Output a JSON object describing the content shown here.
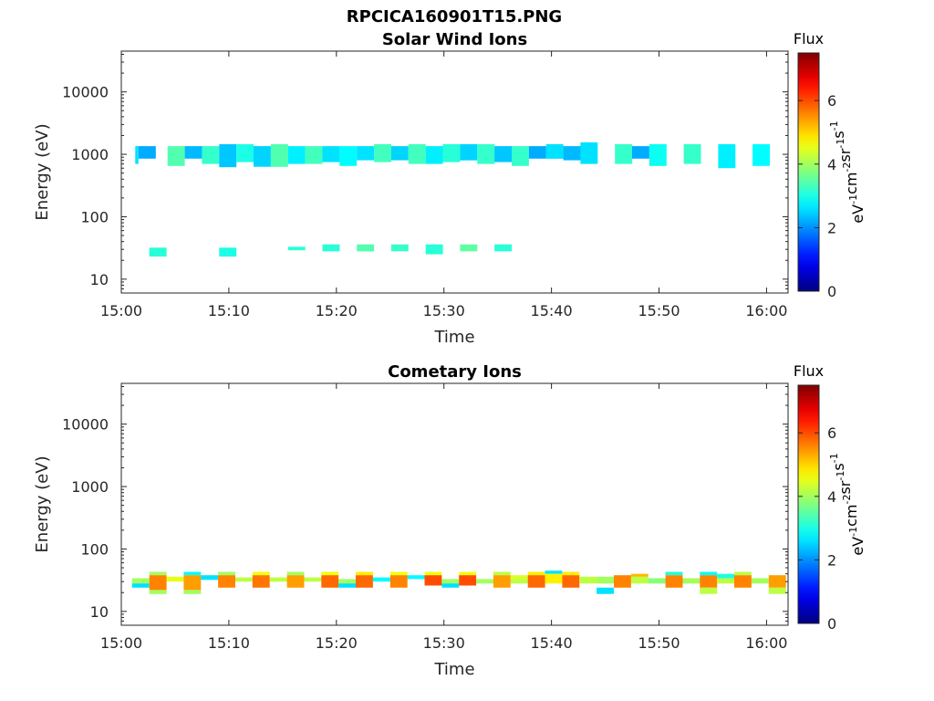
{
  "figure_title": "RPCICA160901T15.PNG",
  "chart_data": [
    {
      "type": "heatmap",
      "title": "Solar Wind Ions",
      "xlabel": "Time",
      "ylabel": "Energy (eV)",
      "x_range": [
        "15:00",
        "16:02"
      ],
      "y_range": [
        6,
        45000
      ],
      "y_scale": "log",
      "x_ticks": [
        "15:00",
        "15:10",
        "15:20",
        "15:30",
        "15:40",
        "15:50",
        "16:00"
      ],
      "y_ticks": [
        "10",
        "100",
        "1000",
        "10000"
      ],
      "colorbar": {
        "label": "Flux",
        "units": "eV-1cm-2sr-1s-1",
        "range": [
          0,
          7.5
        ],
        "ticks": [
          "0",
          "2",
          "4",
          "6"
        ],
        "colormap": "jet"
      },
      "cells": [
        [
          1.3,
          1.6,
          700,
          1350,
          2.6
        ],
        [
          1.6,
          3.2,
          850,
          1350,
          2.2
        ],
        [
          4.3,
          5.9,
          650,
          1350,
          3.4
        ],
        [
          5.9,
          7.5,
          850,
          1350,
          2.3
        ],
        [
          7.5,
          9.1,
          700,
          1350,
          3.2
        ],
        [
          9.1,
          10.7,
          620,
          1450,
          2.4
        ],
        [
          10.7,
          12.3,
          750,
          1450,
          3.0
        ],
        [
          12.3,
          13.9,
          630,
          1350,
          2.5
        ],
        [
          13.9,
          15.5,
          630,
          1450,
          3.4
        ],
        [
          15.5,
          17.1,
          700,
          1350,
          2.7
        ],
        [
          17.1,
          18.7,
          700,
          1350,
          3.3
        ],
        [
          18.7,
          20.3,
          750,
          1350,
          2.6
        ],
        [
          20.3,
          21.9,
          650,
          1350,
          2.8
        ],
        [
          21.9,
          23.5,
          800,
          1350,
          2.6
        ],
        [
          23.5,
          25.1,
          750,
          1450,
          3.3
        ],
        [
          25.1,
          26.7,
          800,
          1350,
          2.5
        ],
        [
          26.7,
          28.3,
          700,
          1450,
          3.3
        ],
        [
          28.3,
          29.9,
          700,
          1350,
          2.7
        ],
        [
          29.9,
          31.5,
          750,
          1450,
          3.1
        ],
        [
          31.5,
          33.1,
          800,
          1450,
          2.5
        ],
        [
          33.1,
          34.7,
          700,
          1450,
          3.2
        ],
        [
          34.7,
          36.3,
          750,
          1350,
          2.4
        ],
        [
          36.3,
          37.9,
          650,
          1350,
          3.2
        ],
        [
          37.9,
          39.5,
          850,
          1350,
          2.2
        ],
        [
          39.5,
          41.1,
          850,
          1450,
          2.6
        ],
        [
          41.1,
          42.7,
          800,
          1350,
          2.3
        ],
        [
          42.7,
          44.3,
          700,
          1550,
          2.6
        ],
        [
          45.9,
          47.5,
          700,
          1450,
          3.2
        ],
        [
          47.5,
          49.1,
          850,
          1350,
          2.2
        ],
        [
          49.1,
          50.7,
          650,
          1450,
          2.9
        ],
        [
          52.3,
          53.9,
          700,
          1450,
          3.2
        ],
        [
          55.5,
          57.1,
          600,
          1450,
          2.7
        ],
        [
          58.7,
          60.3,
          650,
          1450,
          2.8
        ],
        [
          2.6,
          4.2,
          23,
          32,
          3.1
        ],
        [
          9.1,
          10.7,
          23,
          32,
          3.0
        ],
        [
          15.5,
          17.1,
          29,
          33,
          3.1
        ],
        [
          18.7,
          20.3,
          28,
          36,
          3.1
        ],
        [
          21.9,
          23.5,
          28,
          36,
          3.4
        ],
        [
          25.1,
          26.7,
          28,
          36,
          3.2
        ],
        [
          28.3,
          29.9,
          25,
          36,
          3.1
        ],
        [
          31.5,
          33.1,
          28,
          36,
          3.5
        ],
        [
          34.7,
          36.3,
          28,
          36,
          3.1
        ]
      ]
    },
    {
      "type": "heatmap",
      "title": "Cometary Ions",
      "xlabel": "Time",
      "ylabel": "Energy (eV)",
      "x_range": [
        "15:00",
        "16:02"
      ],
      "y_range": [
        6,
        45000
      ],
      "y_scale": "log",
      "x_ticks": [
        "15:00",
        "15:10",
        "15:20",
        "15:30",
        "15:40",
        "15:50",
        "16:00"
      ],
      "y_ticks": [
        "10",
        "100",
        "1000",
        "10000"
      ],
      "colorbar": {
        "label": "Flux",
        "units": "eV-1cm-2sr-1s-1",
        "range": [
          0,
          7.5
        ],
        "ticks": [
          "0",
          "2",
          "4",
          "6"
        ],
        "colormap": "jet"
      },
      "cells": [
        [
          1.0,
          2.6,
          28,
          34,
          4.0
        ],
        [
          1.0,
          2.6,
          24,
          28,
          2.6
        ],
        [
          2.6,
          4.2,
          38,
          43,
          4.0
        ],
        [
          2.6,
          4.2,
          22,
          38,
          5.6
        ],
        [
          2.6,
          4.2,
          19,
          22,
          4.0
        ],
        [
          4.2,
          5.8,
          30,
          36,
          4.5
        ],
        [
          5.8,
          7.4,
          38,
          43,
          2.8
        ],
        [
          5.8,
          7.4,
          22,
          38,
          5.4
        ],
        [
          5.8,
          7.4,
          19,
          22,
          4.0
        ],
        [
          7.4,
          9.0,
          32,
          38,
          2.6
        ],
        [
          9.0,
          10.6,
          38,
          43,
          4.0
        ],
        [
          9.0,
          10.6,
          24,
          38,
          5.6
        ],
        [
          10.6,
          12.2,
          30,
          35,
          4.2
        ],
        [
          12.2,
          13.8,
          38,
          43,
          4.6
        ],
        [
          12.2,
          13.8,
          24,
          38,
          5.7
        ],
        [
          13.8,
          15.4,
          30,
          35,
          4.2
        ],
        [
          15.4,
          17.0,
          38,
          43,
          4.0
        ],
        [
          15.4,
          17.0,
          24,
          38,
          5.4
        ],
        [
          17.0,
          18.6,
          30,
          35,
          4.2
        ],
        [
          18.6,
          20.2,
          38,
          43,
          4.6
        ],
        [
          18.6,
          20.2,
          24,
          38,
          5.8
        ],
        [
          20.2,
          21.8,
          28,
          33,
          4.0
        ],
        [
          20.2,
          21.8,
          24,
          28,
          2.6
        ],
        [
          21.8,
          23.4,
          38,
          43,
          4.8
        ],
        [
          21.8,
          23.4,
          24,
          38,
          5.8
        ],
        [
          23.4,
          25.0,
          30,
          35,
          2.8
        ],
        [
          25.0,
          26.6,
          38,
          43,
          4.6
        ],
        [
          25.0,
          26.6,
          24,
          38,
          5.6
        ],
        [
          26.6,
          28.2,
          33,
          38,
          2.8
        ],
        [
          28.2,
          29.8,
          38,
          43,
          4.6
        ],
        [
          28.2,
          29.8,
          26,
          38,
          6.0
        ],
        [
          29.8,
          31.4,
          28,
          33,
          4.0
        ],
        [
          29.8,
          31.4,
          24,
          28,
          2.6
        ],
        [
          31.4,
          33.0,
          38,
          43,
          4.6
        ],
        [
          31.4,
          33.0,
          26,
          38,
          6.0
        ],
        [
          33.0,
          34.6,
          28,
          33,
          4.0
        ],
        [
          34.6,
          36.2,
          38,
          43,
          4.2
        ],
        [
          34.6,
          36.2,
          24,
          38,
          5.4
        ],
        [
          36.2,
          37.8,
          28,
          33,
          4.2
        ],
        [
          36.2,
          37.8,
          33,
          38,
          4.4
        ],
        [
          37.8,
          39.4,
          38,
          43,
          4.8
        ],
        [
          37.8,
          39.4,
          24,
          38,
          5.8
        ],
        [
          39.4,
          41.0,
          40,
          45,
          2.6
        ],
        [
          39.4,
          41.0,
          28,
          40,
          4.8
        ],
        [
          41.0,
          42.6,
          38,
          43,
          4.8
        ],
        [
          41.0,
          42.6,
          24,
          38,
          5.8
        ],
        [
          42.6,
          44.2,
          28,
          36,
          4.2
        ],
        [
          44.2,
          45.8,
          28,
          36,
          4.0
        ],
        [
          44.2,
          45.8,
          19,
          24,
          2.6
        ],
        [
          45.8,
          47.4,
          24,
          38,
          5.6
        ],
        [
          47.4,
          49.0,
          28,
          36,
          4.2
        ],
        [
          47.4,
          49.0,
          36,
          40,
          5.2
        ],
        [
          49.0,
          50.6,
          28,
          34,
          3.8
        ],
        [
          50.6,
          52.2,
          38,
          43,
          3.0
        ],
        [
          50.6,
          52.2,
          24,
          38,
          5.6
        ],
        [
          52.2,
          53.8,
          28,
          34,
          4.0
        ],
        [
          53.8,
          55.4,
          38,
          43,
          2.8
        ],
        [
          53.8,
          55.4,
          24,
          38,
          5.6
        ],
        [
          53.8,
          55.4,
          19,
          24,
          4.2
        ],
        [
          55.4,
          57.0,
          34,
          40,
          3.0
        ],
        [
          55.4,
          57.0,
          28,
          34,
          4.2
        ],
        [
          57.0,
          58.6,
          38,
          43,
          4.2
        ],
        [
          57.0,
          58.6,
          24,
          38,
          5.6
        ],
        [
          58.6,
          60.2,
          28,
          34,
          4.0
        ],
        [
          60.2,
          61.8,
          24,
          38,
          5.4
        ],
        [
          60.2,
          61.8,
          19,
          24,
          4.2
        ]
      ]
    }
  ]
}
